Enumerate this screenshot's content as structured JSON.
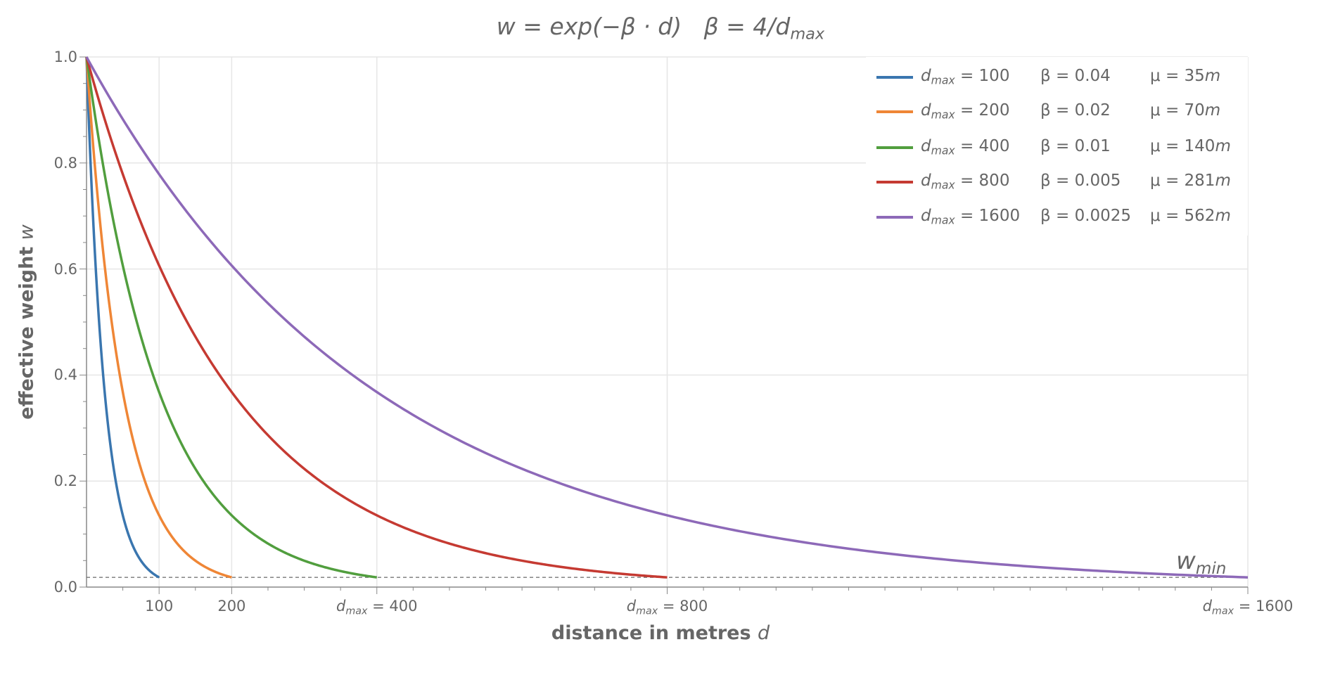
{
  "chart_data": {
    "type": "line",
    "title": {
      "w": "w",
      "eq": " = exp(−β · d)",
      "gap": "   ",
      "beta": "β = 4/d",
      "sub": "max"
    },
    "xlabel": {
      "text": "distance in metres ",
      "var": "d"
    },
    "ylabel": {
      "text": "effective weight ",
      "var": "w"
    },
    "xlim": [
      0,
      1600
    ],
    "ylim": [
      0,
      1.0
    ],
    "grid": true,
    "legend_placement": "top-right",
    "x_ticks": [
      {
        "value": 100,
        "label": "100",
        "prefix": ""
      },
      {
        "value": 200,
        "label": "200",
        "prefix": ""
      },
      {
        "value": 400,
        "label": " = 400",
        "prefix": "d"
      },
      {
        "value": 800,
        "label": " = 800",
        "prefix": "d"
      },
      {
        "value": 1600,
        "label": " = 1600",
        "prefix": "d"
      }
    ],
    "x_tick_sub": "max",
    "y_ticks": [
      {
        "value": 0.0,
        "label": "0.0"
      },
      {
        "value": 0.2,
        "label": "0.2"
      },
      {
        "value": 0.4,
        "label": "0.4"
      },
      {
        "value": 0.6,
        "label": "0.6"
      },
      {
        "value": 0.8,
        "label": "0.8"
      },
      {
        "value": 1.0,
        "label": "1.0"
      }
    ],
    "w_min": {
      "value": 0.0183,
      "label": "w",
      "sub": "min"
    },
    "series": [
      {
        "name": "d_max = 100",
        "dmax": 100,
        "beta": 0.04,
        "color": "#3a76af",
        "l1": "d",
        "l1sub": "max",
        "l1b": " = 100",
        "l2": "β = 0.04",
        "l3": "μ = 35",
        "l3m": "m",
        "values_at": {
          "0": 1.0,
          "50": 0.135,
          "100": 0.0183
        }
      },
      {
        "name": "d_max = 200",
        "dmax": 200,
        "beta": 0.02,
        "color": "#ef8636",
        "l1": "d",
        "l1sub": "max",
        "l1b": " = 200",
        "l2": "β = 0.02",
        "l3": "μ = 70",
        "l3m": "m",
        "values_at": {
          "0": 1.0,
          "100": 0.135,
          "200": 0.0183
        }
      },
      {
        "name": "d_max = 400",
        "dmax": 400,
        "beta": 0.01,
        "color": "#519e3e",
        "l1": "d",
        "l1sub": "max",
        "l1b": " = 400",
        "l2": "β = 0.01",
        "l3": "μ = 140",
        "l3m": "m",
        "values_at": {
          "0": 1.0,
          "200": 0.135,
          "400": 0.0183
        }
      },
      {
        "name": "d_max = 800",
        "dmax": 800,
        "beta": 0.005,
        "color": "#c53a32",
        "l1": "d",
        "l1sub": "max",
        "l1b": " = 800",
        "l2": "β = 0.005",
        "l3": "μ = 281",
        "l3m": "m",
        "values_at": {
          "0": 1.0,
          "400": 0.135,
          "800": 0.0183
        }
      },
      {
        "name": "d_max = 1600",
        "dmax": 1600,
        "beta": 0.0025,
        "color": "#8d69b8",
        "l1": "d",
        "l1sub": "max",
        "l1b": " = 1600",
        "l2": "β = 0.0025",
        "l3": "μ = 562",
        "l3m": "m",
        "values_at": {
          "0": 1.0,
          "800": 0.135,
          "1600": 0.0183
        }
      }
    ]
  }
}
